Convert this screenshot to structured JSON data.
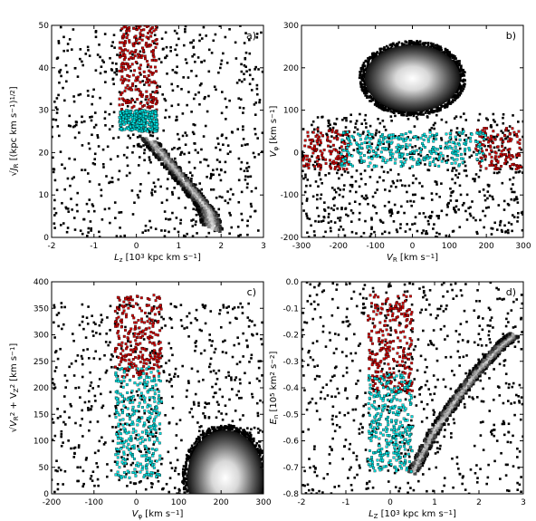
{
  "colors": {
    "halo": "#000000",
    "fast": "#cc0000",
    "slow": "#00dede"
  },
  "chart_data": [
    {
      "type": "scatter",
      "panel_label": "a)",
      "xlabel_parts": [
        "L",
        "z",
        " [10",
        "3",
        " kpc km s",
        "−1",
        "]"
      ],
      "ylabel_parts": [
        "√J",
        "R",
        " [(kpc km s",
        "−1",
        ")",
        "1/2",
        "]"
      ],
      "xlim": [
        -2,
        3
      ],
      "ylim": [
        0,
        50
      ],
      "xticks": [
        "-2",
        "-1",
        "0",
        "1",
        "2",
        "3"
      ],
      "yticks": [
        "0",
        "10",
        "20",
        "30",
        "40",
        "50"
      ],
      "series": [
        {
          "role": "density",
          "ridge": [
            [
              0.3,
              23
            ],
            [
              0.8,
              17
            ],
            [
              1.3,
              11
            ],
            [
              1.7,
              6
            ],
            [
              1.8,
              2
            ]
          ]
        },
        {
          "role": "halo",
          "x_range": [
            -2,
            3
          ],
          "y_range": [
            0,
            50
          ]
        },
        {
          "role": "fast",
          "x_range": [
            -0.4,
            0.5
          ],
          "y_range": [
            30,
            50
          ]
        },
        {
          "role": "slow",
          "x_range": [
            -0.4,
            0.5
          ],
          "y_range": [
            25,
            30
          ]
        }
      ]
    },
    {
      "type": "scatter",
      "panel_label": "b)",
      "xlabel_parts": [
        "V",
        "R",
        " [km s",
        "−1",
        "]"
      ],
      "ylabel_parts": [
        "V",
        "φ",
        " [km s",
        "−1",
        "]"
      ],
      "xlim": [
        -350,
        350
      ],
      "ylim": [
        -250,
        350
      ],
      "xticks": [
        "-300",
        "-200",
        "-100",
        "0",
        "100",
        "200",
        "300"
      ],
      "yticks": [
        "-200",
        "-100",
        "0",
        "100",
        "200",
        "300"
      ],
      "series": [
        {
          "role": "density",
          "center": [
            0,
            200
          ],
          "spread": [
            150,
            95
          ]
        },
        {
          "role": "halo",
          "x_range": [
            -350,
            350
          ],
          "y_range": [
            -250,
            100
          ]
        },
        {
          "role": "fast",
          "x_range": [
            -350,
            350
          ],
          "y_range": [
            -60,
            60
          ]
        },
        {
          "role": "slow",
          "x_range": [
            -230,
            230
          ],
          "y_range": [
            -50,
            50
          ]
        }
      ]
    },
    {
      "type": "scatter",
      "panel_label": "c)",
      "xlabel_parts": [
        "V",
        "φ",
        " [km s",
        "−1",
        "]"
      ],
      "ylabel_parts": [
        "√V",
        "R",
        "2",
        " + V",
        "Z",
        "2",
        " [km s",
        "−1",
        "]"
      ],
      "xlim": [
        -200,
        300
      ],
      "ylim": [
        0,
        400
      ],
      "xticks": [
        "-200",
        "-100",
        "0",
        "100",
        "200",
        "300"
      ],
      "yticks": [
        "0",
        "50",
        "100",
        "150",
        "200",
        "250",
        "300",
        "350",
        "400"
      ],
      "series": [
        {
          "role": "density",
          "center": [
            210,
            30
          ],
          "spread": [
            90,
            90
          ]
        },
        {
          "role": "halo",
          "x_range": [
            -200,
            300
          ],
          "y_range": [
            0,
            360
          ]
        },
        {
          "role": "fast",
          "x_range": [
            -50,
            60
          ],
          "y_range": [
            220,
            375
          ]
        },
        {
          "role": "slow",
          "x_range": [
            -50,
            60
          ],
          "y_range": [
            30,
            240
          ]
        }
      ]
    },
    {
      "type": "scatter",
      "panel_label": "d)",
      "xlabel_parts": [
        "L",
        "Z",
        " [10",
        "3",
        " kpc km s",
        "−1",
        "]"
      ],
      "ylabel_parts": [
        "E",
        "n",
        " [10",
        "5",
        " km",
        "2",
        " s",
        "−2",
        "]"
      ],
      "xlim": [
        -2,
        3
      ],
      "ylim": [
        -0.8,
        0.0
      ],
      "xticks": [
        "-2",
        "-1",
        "0",
        "1",
        "2",
        "3"
      ],
      "yticks": [
        "-0.8",
        "-0.7",
        "-0.6",
        "-0.5",
        "-0.4",
        "-0.3",
        "-0.2",
        "-0.1",
        "0.0"
      ],
      "series": [
        {
          "role": "density",
          "ridge": [
            [
              0.5,
              -0.72
            ],
            [
              1.0,
              -0.56
            ],
            [
              1.5,
              -0.44
            ],
            [
              2.0,
              -0.33
            ],
            [
              2.5,
              -0.24
            ],
            [
              2.8,
              -0.2
            ]
          ]
        },
        {
          "role": "halo",
          "x_range": [
            -2,
            3
          ],
          "y_range": [
            -0.8,
            0.0
          ]
        },
        {
          "role": "fast",
          "x_range": [
            -0.5,
            0.5
          ],
          "y_range": [
            -0.42,
            -0.05
          ]
        },
        {
          "role": "slow",
          "x_range": [
            -0.5,
            0.5
          ],
          "y_range": [
            -0.72,
            -0.35
          ]
        }
      ]
    }
  ]
}
